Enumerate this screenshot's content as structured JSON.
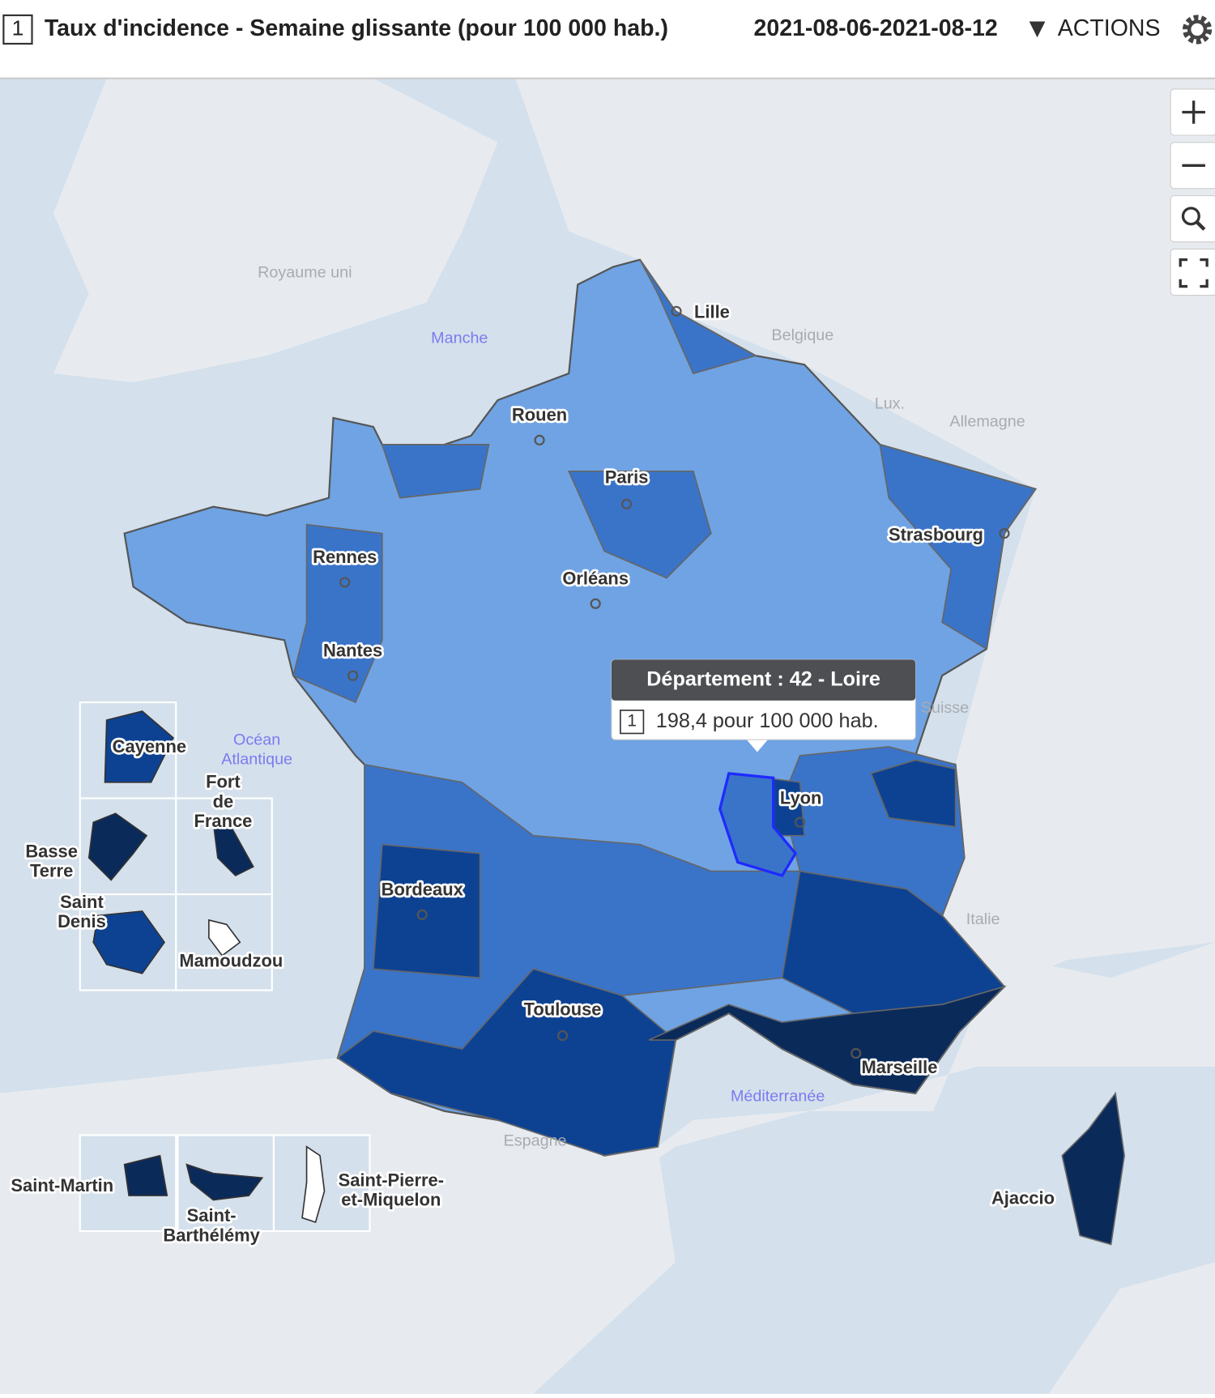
{
  "header": {
    "badge": "1",
    "title": "Taux d'incidence - Semaine glissante (pour 100 000 hab.)",
    "period": "2021-08-06-2021-08-12",
    "actions": "ACTIONS"
  },
  "map": {
    "cities": [
      "Lille",
      "Rouen",
      "Paris",
      "Strasbourg",
      "Rennes",
      "Orléans",
      "Nantes",
      "Lyon",
      "Bordeaux",
      "Toulouse",
      "Marseille",
      "Ajaccio"
    ],
    "countries": [
      "Royaume uni",
      "Belgique",
      "Lux.",
      "Allemagne",
      "Suisse",
      "Italie",
      "Espagne"
    ],
    "seas": [
      {
        "lines": [
          "Manche"
        ]
      },
      {
        "lines": [
          "Océan",
          "Atlantique"
        ]
      },
      {
        "lines": [
          "Méditerranée"
        ]
      }
    ],
    "overseas": [
      {
        "lines": [
          "Cayenne"
        ]
      },
      {
        "lines": [
          "Fort",
          "de",
          "France"
        ]
      },
      {
        "lines": [
          "Basse",
          "Terre"
        ]
      },
      {
        "lines": [
          "Saint",
          "Denis"
        ]
      },
      {
        "lines": [
          "Mamoudzou"
        ]
      },
      {
        "lines": [
          "Saint-Martin"
        ]
      },
      {
        "lines": [
          "Saint-",
          "Barthélémy"
        ]
      },
      {
        "lines": [
          "Saint-Pierre-",
          "et-Miquelon"
        ]
      }
    ]
  },
  "tooltip": {
    "title": "Département : 42 - Loire",
    "badge": "1",
    "value": "198,4 pour 100 000 hab."
  }
}
